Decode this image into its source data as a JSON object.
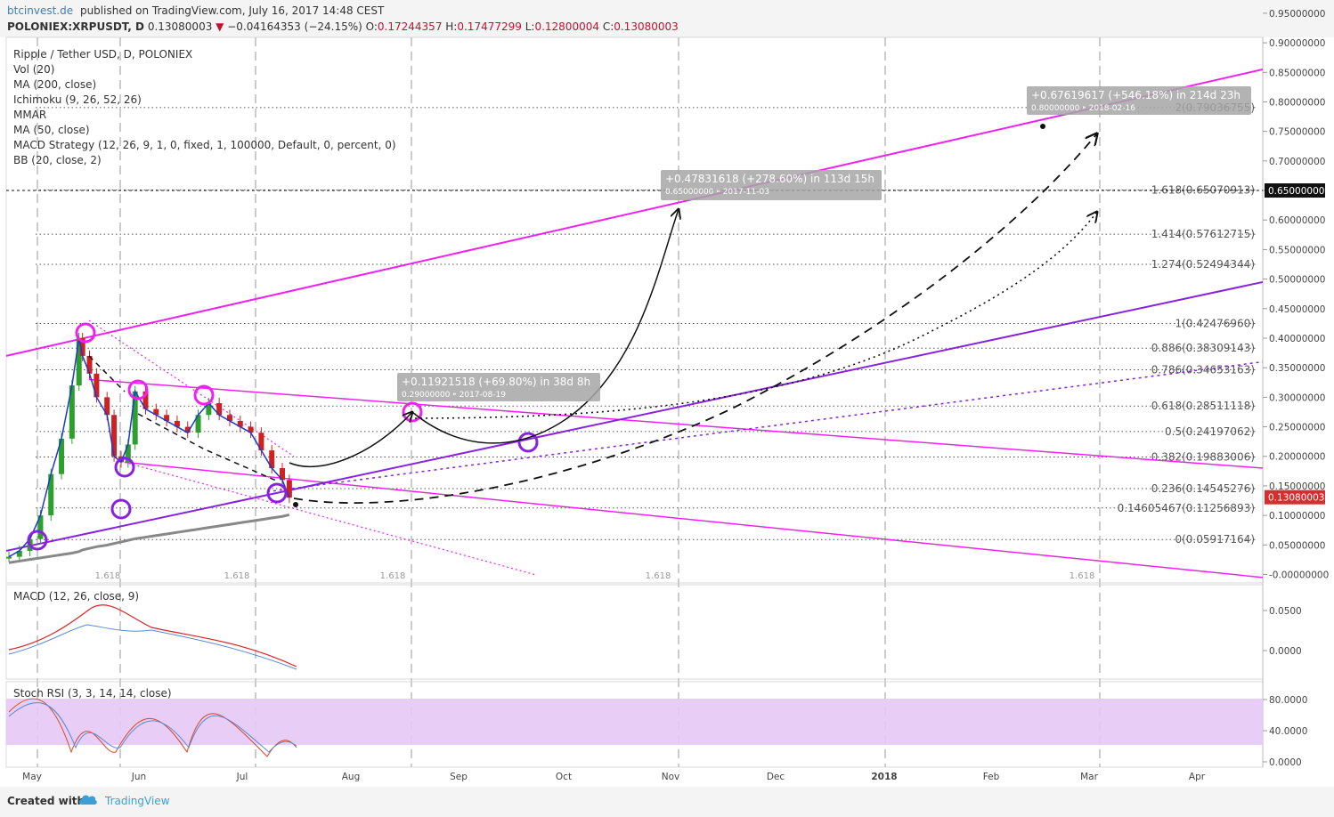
{
  "header": {
    "site": "btcinvest.de",
    "published": "published on TradingView.com, July 16, 2017 14:48 CEST",
    "symbol": "POLONIEX:XRPUSDT, D",
    "last": "0.13080003",
    "change": "−0.04164353 (−24.15%)",
    "open_label": "O:",
    "open": "0.17244357",
    "high_label": "H:",
    "high": "0.17477299",
    "low_label": "L:",
    "low": "0.12800004",
    "close_label": "C:",
    "close": "0.13080003"
  },
  "legend": [
    "Ripple / Tether USD, D, POLONIEX",
    "Vol (20)",
    "MA (200, close)",
    "Ichimoku (9, 26, 52, 26)",
    "MMAR",
    "MA (50, close)",
    "MACD Strategy (12, 26, 9, 1, 0, fixed, 1, 100000, Default, 0, percent, 0)",
    "BB (20, close, 2)"
  ],
  "panels": {
    "macd_label": "MACD (12, 26, close, 9)",
    "stoch_label": "Stoch RSI (3, 3, 14, 14, close)",
    "macd_ticks": [
      "0.0500",
      "0.0000"
    ],
    "stoch_ticks": [
      "80.0000",
      "40.0000",
      "0.0000"
    ]
  },
  "colors": {
    "magenta": "#ee22ee",
    "purple": "#8822dd",
    "price_up": "#2e9e2e",
    "price_down": "#cc2222",
    "stoch_band": "#e6c9f5",
    "axis_text": "#444444"
  },
  "chart_data": {
    "type": "line",
    "title": "Ripple / Tether USD, D, POLONIEX",
    "xlabel": "",
    "ylabel": "",
    "x_axis_labels": [
      "May",
      "Jun",
      "Jul",
      "Aug",
      "Sep",
      "Oct",
      "Nov",
      "Dec",
      "2018",
      "Feb",
      "Mar",
      "Apr"
    ],
    "y_axis_ticks": [
      "0.95000000",
      "0.90000000",
      "0.85000000",
      "0.80000000",
      "0.75000000",
      "0.70000000",
      "0.65000000",
      "0.60000000",
      "0.55000000",
      "0.50000000",
      "0.45000000",
      "0.40000000",
      "0.35000000",
      "0.30000000",
      "0.25000000",
      "0.20000000",
      "0.15000000",
      "0.10000000",
      "0.05000000",
      "-0.00000000"
    ],
    "ylim": [
      -0.005,
      0.965
    ],
    "price_labels": {
      "target": "0.65000000",
      "last": "0.13080003"
    },
    "fib_levels": [
      {
        "label": "2(0.79036755)",
        "value": 0.79036755
      },
      {
        "label": "1.618(0.65070913)",
        "value": 0.65070913
      },
      {
        "label": "1.414(0.57612715)",
        "value": 0.57612715
      },
      {
        "label": "1.274(0.52494344)",
        "value": 0.52494344
      },
      {
        "label": "1(0.42476960)",
        "value": 0.4247696
      },
      {
        "label": "0.886(0.38309143)",
        "value": 0.38309143
      },
      {
        "label": "0.786(0.34653163)",
        "value": 0.34653163
      },
      {
        "label": "0.618(0.28511118)",
        "value": 0.28511118
      },
      {
        "label": "0.5(0.24197062)",
        "value": 0.24197062
      },
      {
        "label": "0.382(0.19883006)",
        "value": 0.19883006
      },
      {
        "label": "0.236(0.14545276)",
        "value": 0.14545276
      },
      {
        "label": "0.14605467(0.11256893)",
        "value": 0.11256893
      },
      {
        "label": "0(0.05917164)",
        "value": 0.05917164
      }
    ],
    "fib_time_labels": [
      "1.618",
      "1.618",
      "1.618",
      "1.618",
      "1.618"
    ],
    "projections": [
      {
        "line1": "+0.11921518 (+69.80%) in 38d 8h",
        "line2": "0.29000000 ⁍ 2017-08-19"
      },
      {
        "line1": "+0.47831618 (+278.60%) in 113d 15h",
        "line2": "0.65000000 ⁍ 2017-11-03"
      },
      {
        "line1": "+0.67619617 (+546.18%) in 214d 23h",
        "line2": "0.80000000 ⁍ 2018-02-16"
      }
    ],
    "price_series": {
      "name": "XRPUSDT",
      "x": [
        "2017-04-26",
        "2017-04-29",
        "2017-05-02",
        "2017-05-05",
        "2017-05-08",
        "2017-05-11",
        "2017-05-14",
        "2017-05-16",
        "2017-05-17",
        "2017-05-19",
        "2017-05-21",
        "2017-05-24",
        "2017-05-26",
        "2017-05-28",
        "2017-05-30",
        "2017-06-01",
        "2017-06-04",
        "2017-06-07",
        "2017-06-10",
        "2017-06-13",
        "2017-06-16",
        "2017-06-19",
        "2017-06-22",
        "2017-06-25",
        "2017-06-28",
        "2017-07-01",
        "2017-07-04",
        "2017-07-07",
        "2017-07-10",
        "2017-07-13",
        "2017-07-15"
      ],
      "values": [
        0.03,
        0.04,
        0.06,
        0.1,
        0.17,
        0.23,
        0.32,
        0.4,
        0.37,
        0.34,
        0.3,
        0.27,
        0.2,
        0.19,
        0.22,
        0.31,
        0.28,
        0.27,
        0.26,
        0.25,
        0.24,
        0.27,
        0.29,
        0.27,
        0.26,
        0.25,
        0.24,
        0.21,
        0.18,
        0.16,
        0.13
      ]
    },
    "stoch_rsi_range": [
      0,
      100
    ]
  }
}
